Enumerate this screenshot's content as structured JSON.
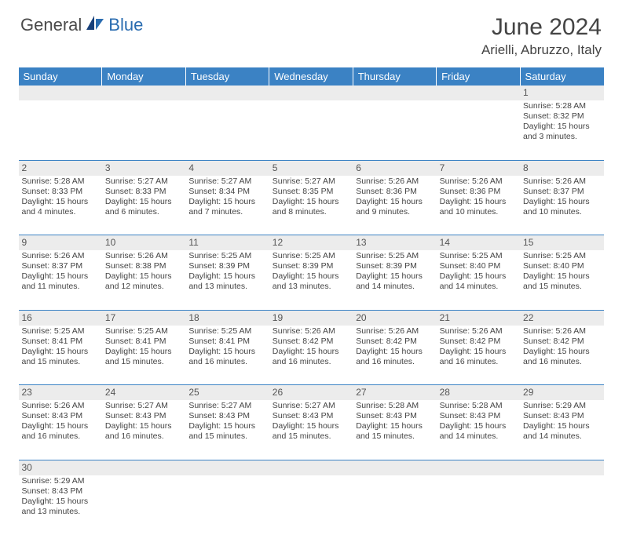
{
  "logo": {
    "text1": "General",
    "text2": "Blue"
  },
  "title": "June 2024",
  "location": "Arielli, Abruzzo, Italy",
  "colors": {
    "header_bg": "#3b82c4",
    "header_fg": "#ffffff",
    "daynum_bg": "#ececec",
    "border": "#3b82c4",
    "text": "#444444",
    "logo_gray": "#4a4a4a",
    "logo_blue": "#2a6cb0",
    "page_bg": "#ffffff"
  },
  "weekdays": [
    "Sunday",
    "Monday",
    "Tuesday",
    "Wednesday",
    "Thursday",
    "Friday",
    "Saturday"
  ],
  "weeks": [
    [
      null,
      null,
      null,
      null,
      null,
      null,
      {
        "n": "1",
        "sr": "5:28 AM",
        "ss": "8:32 PM",
        "dl": "15 hours and 3 minutes."
      }
    ],
    [
      {
        "n": "2",
        "sr": "5:28 AM",
        "ss": "8:33 PM",
        "dl": "15 hours and 4 minutes."
      },
      {
        "n": "3",
        "sr": "5:27 AM",
        "ss": "8:33 PM",
        "dl": "15 hours and 6 minutes."
      },
      {
        "n": "4",
        "sr": "5:27 AM",
        "ss": "8:34 PM",
        "dl": "15 hours and 7 minutes."
      },
      {
        "n": "5",
        "sr": "5:27 AM",
        "ss": "8:35 PM",
        "dl": "15 hours and 8 minutes."
      },
      {
        "n": "6",
        "sr": "5:26 AM",
        "ss": "8:36 PM",
        "dl": "15 hours and 9 minutes."
      },
      {
        "n": "7",
        "sr": "5:26 AM",
        "ss": "8:36 PM",
        "dl": "15 hours and 10 minutes."
      },
      {
        "n": "8",
        "sr": "5:26 AM",
        "ss": "8:37 PM",
        "dl": "15 hours and 10 minutes."
      }
    ],
    [
      {
        "n": "9",
        "sr": "5:26 AM",
        "ss": "8:37 PM",
        "dl": "15 hours and 11 minutes."
      },
      {
        "n": "10",
        "sr": "5:26 AM",
        "ss": "8:38 PM",
        "dl": "15 hours and 12 minutes."
      },
      {
        "n": "11",
        "sr": "5:25 AM",
        "ss": "8:39 PM",
        "dl": "15 hours and 13 minutes."
      },
      {
        "n": "12",
        "sr": "5:25 AM",
        "ss": "8:39 PM",
        "dl": "15 hours and 13 minutes."
      },
      {
        "n": "13",
        "sr": "5:25 AM",
        "ss": "8:39 PM",
        "dl": "15 hours and 14 minutes."
      },
      {
        "n": "14",
        "sr": "5:25 AM",
        "ss": "8:40 PM",
        "dl": "15 hours and 14 minutes."
      },
      {
        "n": "15",
        "sr": "5:25 AM",
        "ss": "8:40 PM",
        "dl": "15 hours and 15 minutes."
      }
    ],
    [
      {
        "n": "16",
        "sr": "5:25 AM",
        "ss": "8:41 PM",
        "dl": "15 hours and 15 minutes."
      },
      {
        "n": "17",
        "sr": "5:25 AM",
        "ss": "8:41 PM",
        "dl": "15 hours and 15 minutes."
      },
      {
        "n": "18",
        "sr": "5:25 AM",
        "ss": "8:41 PM",
        "dl": "15 hours and 16 minutes."
      },
      {
        "n": "19",
        "sr": "5:26 AM",
        "ss": "8:42 PM",
        "dl": "15 hours and 16 minutes."
      },
      {
        "n": "20",
        "sr": "5:26 AM",
        "ss": "8:42 PM",
        "dl": "15 hours and 16 minutes."
      },
      {
        "n": "21",
        "sr": "5:26 AM",
        "ss": "8:42 PM",
        "dl": "15 hours and 16 minutes."
      },
      {
        "n": "22",
        "sr": "5:26 AM",
        "ss": "8:42 PM",
        "dl": "15 hours and 16 minutes."
      }
    ],
    [
      {
        "n": "23",
        "sr": "5:26 AM",
        "ss": "8:43 PM",
        "dl": "15 hours and 16 minutes."
      },
      {
        "n": "24",
        "sr": "5:27 AM",
        "ss": "8:43 PM",
        "dl": "15 hours and 16 minutes."
      },
      {
        "n": "25",
        "sr": "5:27 AM",
        "ss": "8:43 PM",
        "dl": "15 hours and 15 minutes."
      },
      {
        "n": "26",
        "sr": "5:27 AM",
        "ss": "8:43 PM",
        "dl": "15 hours and 15 minutes."
      },
      {
        "n": "27",
        "sr": "5:28 AM",
        "ss": "8:43 PM",
        "dl": "15 hours and 15 minutes."
      },
      {
        "n": "28",
        "sr": "5:28 AM",
        "ss": "8:43 PM",
        "dl": "15 hours and 14 minutes."
      },
      {
        "n": "29",
        "sr": "5:29 AM",
        "ss": "8:43 PM",
        "dl": "15 hours and 14 minutes."
      }
    ],
    [
      {
        "n": "30",
        "sr": "5:29 AM",
        "ss": "8:43 PM",
        "dl": "15 hours and 13 minutes."
      },
      null,
      null,
      null,
      null,
      null,
      null
    ]
  ],
  "labels": {
    "sunrise": "Sunrise:",
    "sunset": "Sunset:",
    "daylight": "Daylight:"
  }
}
